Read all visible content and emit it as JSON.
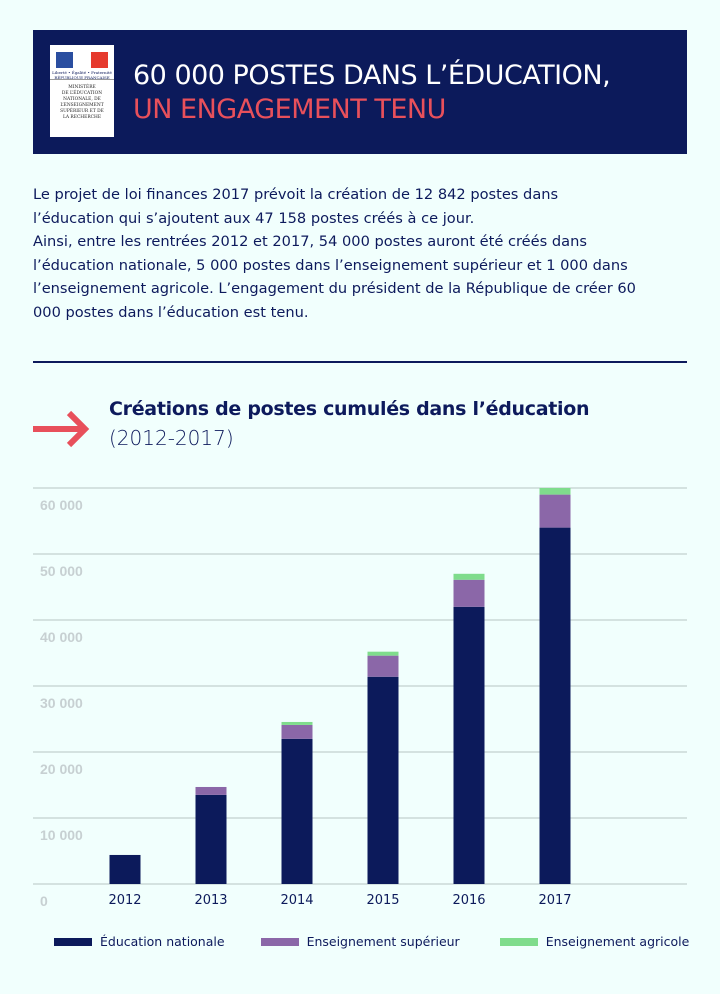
{
  "header": {
    "title_line1": "60 000 POSTES DANS L’ÉDUCATION,",
    "title_line2": "UN ENGAGEMENT TENU",
    "logo_text": "Liberté • Égalité • Fraternité RÉPUBLIQUE FRANÇAISE",
    "logo_ministry": "MINISTÈRE\nDE L’ÉDUCATION\nNATIONALE, DE\nL’ENSEIGNEMENT\nSUPÉRIEUR ET DE\nLA RECHERCHE"
  },
  "intro": [
    "Le projet de loi finances 2017 prévoit la création de 12 842 postes dans l’éducation qui s’ajoutent aux 47 158 postes créés à ce jour.",
    "Ainsi, entre les rentrées 2012 et 2017, 54 000 postes auront été créés dans l’éducation nationale, 5 000 postes dans l’enseignement supérieur et 1 000 dans l’enseignement agricole. L’engagement du président de la République de créer 60 000 postes dans l’éducation est tenu."
  ],
  "colors": {
    "navy": "#0c1a5b",
    "purple": "#8b67a8",
    "green": "#7fdc8c",
    "red": "#e8505b"
  },
  "chart_data": {
    "type": "bar",
    "stacked": true,
    "title": "Créations de postes cumulés dans l’éducation",
    "subtitle": "(2012-2017)",
    "categories": [
      "2012",
      "2013",
      "2014",
      "2015",
      "2016",
      "2017"
    ],
    "series": [
      {
        "name": "Éducation nationale",
        "color": "#0c1a5b",
        "values": [
          4400,
          13500,
          22000,
          31400,
          42000,
          54000
        ]
      },
      {
        "name": "Enseignement supérieur",
        "color": "#8b67a8",
        "values": [
          0,
          1200,
          2100,
          3200,
          4100,
          5000
        ]
      },
      {
        "name": "Enseignement agricole",
        "color": "#7fdc8c",
        "values": [
          0,
          0,
          450,
          600,
          900,
          1000
        ]
      }
    ],
    "yticks": [
      "0",
      "10 000",
      "20 000",
      "30 000",
      "40 000",
      "50 000",
      "60 000"
    ],
    "ytick_values": [
      0,
      10000,
      20000,
      30000,
      40000,
      50000,
      60000
    ],
    "ylim": [
      0,
      60000
    ],
    "grid": true,
    "legend": "bottom"
  }
}
